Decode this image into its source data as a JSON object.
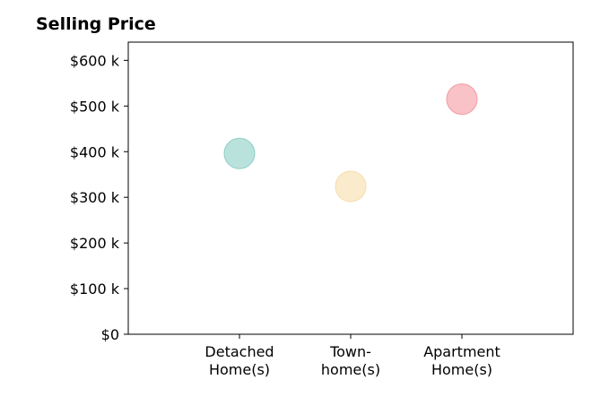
{
  "chart_data": {
    "type": "scatter",
    "title": "Selling Price",
    "xlabel": "",
    "ylabel": "",
    "categories": [
      [
        "Detached",
        "Home(s)"
      ],
      [
        "Town-",
        "home(s)"
      ],
      [
        "Apartment",
        "Home(s)"
      ]
    ],
    "values": [
      396000,
      324000,
      515000
    ],
    "colors": [
      "#8ccfc6",
      "#f6deaa",
      "#f39aa2"
    ],
    "xlim": [
      -1,
      3
    ],
    "ylim": [
      0,
      640000
    ],
    "yticks": [
      0,
      100000,
      200000,
      300000,
      400000,
      500000,
      600000
    ],
    "ytick_labels": [
      "$0",
      "$100 k",
      "$200 k",
      "$300 k",
      "$400 k",
      "$500 k",
      "$600 k"
    ],
    "grid": false,
    "legend": "none"
  }
}
